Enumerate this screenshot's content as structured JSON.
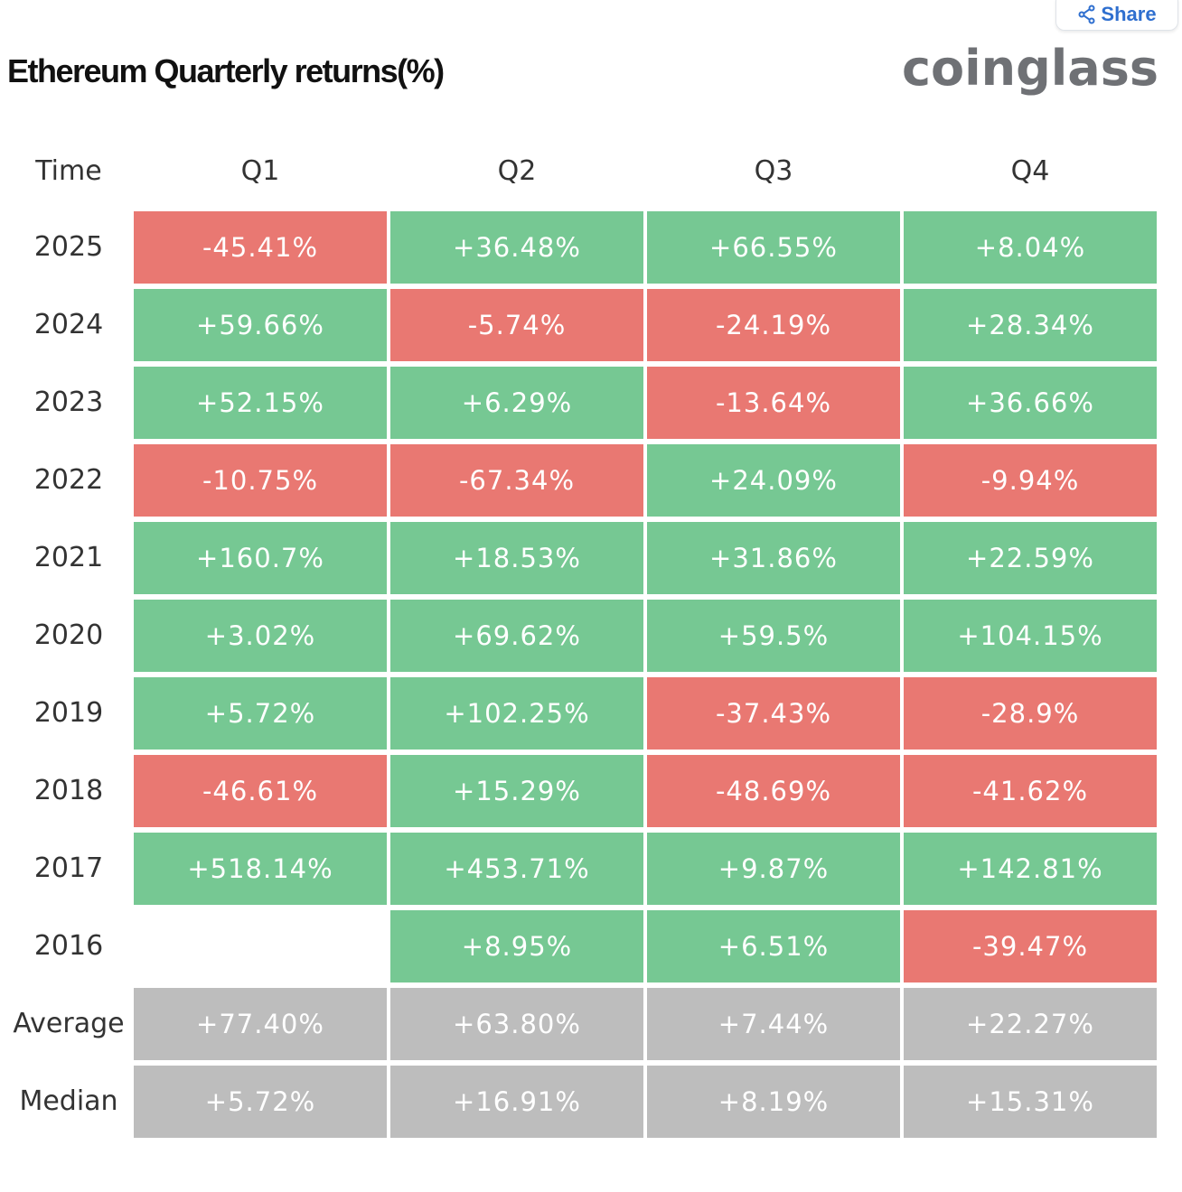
{
  "share_label": "Share",
  "logo": "coinglass",
  "colors": {
    "positive": "#76c893",
    "negative": "#e97872",
    "summary": "#bdbdbd"
  },
  "chart_data": {
    "type": "table",
    "title": "Ethereum Quarterly returns(%)",
    "columns": [
      "Time",
      "Q1",
      "Q2",
      "Q3",
      "Q4"
    ],
    "rows": [
      {
        "label": "2025",
        "values": [
          "-45.41%",
          "+36.48%",
          "+66.55%",
          "+8.04%"
        ]
      },
      {
        "label": "2024",
        "values": [
          "+59.66%",
          "-5.74%",
          "-24.19%",
          "+28.34%"
        ]
      },
      {
        "label": "2023",
        "values": [
          "+52.15%",
          "+6.29%",
          "-13.64%",
          "+36.66%"
        ]
      },
      {
        "label": "2022",
        "values": [
          "-10.75%",
          "-67.34%",
          "+24.09%",
          "-9.94%"
        ]
      },
      {
        "label": "2021",
        "values": [
          "+160.7%",
          "+18.53%",
          "+31.86%",
          "+22.59%"
        ]
      },
      {
        "label": "2020",
        "values": [
          "+3.02%",
          "+69.62%",
          "+59.5%",
          "+104.15%"
        ]
      },
      {
        "label": "2019",
        "values": [
          "+5.72%",
          "+102.25%",
          "-37.43%",
          "-28.9%"
        ]
      },
      {
        "label": "2018",
        "values": [
          "-46.61%",
          "+15.29%",
          "-48.69%",
          "-41.62%"
        ]
      },
      {
        "label": "2017",
        "values": [
          "+518.14%",
          "+453.71%",
          "+9.87%",
          "+142.81%"
        ]
      },
      {
        "label": "2016",
        "values": [
          null,
          "+8.95%",
          "+6.51%",
          "-39.47%"
        ]
      }
    ],
    "summary": [
      {
        "label": "Average",
        "values": [
          "+77.40%",
          "+63.80%",
          "+7.44%",
          "+22.27%"
        ]
      },
      {
        "label": "Median",
        "values": [
          "+5.72%",
          "+16.91%",
          "+8.19%",
          "+15.31%"
        ]
      }
    ]
  }
}
